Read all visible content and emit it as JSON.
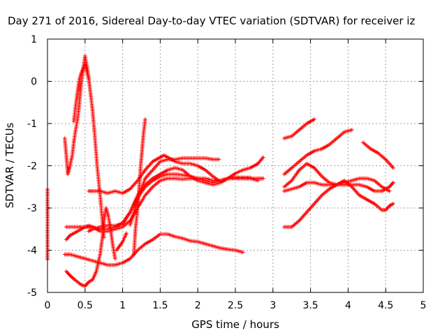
{
  "chart_data": {
    "type": "scatter",
    "title": "Day 271 of 2016, Sidereal Day-to-day VTEC variation (SDTVAR) for receiver iz",
    "xlabel": "GPS time / hours",
    "ylabel": "SDTVAR / TECUs",
    "xlim": [
      0,
      5
    ],
    "ylim": [
      -5,
      1
    ],
    "xticks": [
      0,
      0.5,
      1,
      1.5,
      2,
      2.5,
      3,
      3.5,
      4,
      4.5,
      5
    ],
    "yticks": [
      -5,
      -4,
      -3,
      -2,
      -1,
      0,
      1
    ],
    "xtick_labels": [
      "0",
      "0.5",
      "1",
      "1.5",
      "2",
      "2.5",
      "3",
      "3.5",
      "4",
      "4.5",
      "5"
    ],
    "ytick_labels": [
      "-5",
      "-4",
      "-3",
      "-2",
      "-1",
      "0",
      "1"
    ],
    "grid": true,
    "legend": "none",
    "marker": "+",
    "marker_color": "#ff0000",
    "series": [
      {
        "name": "s1",
        "points": [
          [
            0.0,
            -2.55
          ],
          [
            0.0,
            -3.5
          ],
          [
            0.0,
            -4.22
          ]
        ]
      },
      {
        "name": "s2",
        "points": [
          [
            0.25,
            -4.5
          ],
          [
            0.3,
            -4.6
          ],
          [
            0.35,
            -4.68
          ],
          [
            0.4,
            -4.75
          ],
          [
            0.45,
            -4.82
          ],
          [
            0.5,
            -4.85
          ],
          [
            0.55,
            -4.75
          ],
          [
            0.6,
            -4.7
          ],
          [
            0.65,
            -4.5
          ],
          [
            0.7,
            -4.1
          ],
          [
            0.73,
            -3.7
          ],
          [
            0.76,
            -3.2
          ],
          [
            0.78,
            -3.0
          ],
          [
            0.81,
            -3.2
          ],
          [
            0.84,
            -3.5
          ],
          [
            0.87,
            -3.9
          ],
          [
            0.9,
            -4.2
          ]
        ]
      },
      {
        "name": "s3",
        "points": [
          [
            0.23,
            -4.1
          ],
          [
            0.3,
            -4.1
          ],
          [
            0.4,
            -4.15
          ],
          [
            0.5,
            -4.2
          ],
          [
            0.6,
            -4.25
          ],
          [
            0.7,
            -4.3
          ],
          [
            0.8,
            -4.35
          ],
          [
            0.9,
            -4.35
          ],
          [
            1.0,
            -4.3
          ],
          [
            1.1,
            -4.2
          ],
          [
            1.2,
            -4.0
          ],
          [
            1.3,
            -3.85
          ],
          [
            1.4,
            -3.75
          ],
          [
            1.5,
            -3.62
          ],
          [
            1.6,
            -3.62
          ],
          [
            1.7,
            -3.68
          ],
          [
            1.8,
            -3.72
          ],
          [
            1.9,
            -3.78
          ],
          [
            2.0,
            -3.8
          ],
          [
            2.1,
            -3.85
          ],
          [
            2.2,
            -3.9
          ],
          [
            2.3,
            -3.95
          ],
          [
            2.4,
            -3.98
          ],
          [
            2.5,
            -4.0
          ],
          [
            2.6,
            -4.05
          ]
        ]
      },
      {
        "name": "s4",
        "points": [
          [
            0.25,
            -3.75
          ],
          [
            0.3,
            -3.65
          ],
          [
            0.35,
            -3.6
          ],
          [
            0.4,
            -3.55
          ],
          [
            0.45,
            -3.5
          ],
          [
            0.5,
            -3.45
          ],
          [
            0.55,
            -3.42
          ],
          [
            0.6,
            -3.45
          ],
          [
            0.7,
            -3.55
          ],
          [
            0.8,
            -3.55
          ],
          [
            0.9,
            -3.5
          ],
          [
            1.0,
            -3.45
          ],
          [
            1.1,
            -3.3
          ],
          [
            1.2,
            -3.0
          ],
          [
            1.3,
            -2.7
          ],
          [
            1.4,
            -2.5
          ],
          [
            1.5,
            -2.35
          ],
          [
            1.6,
            -2.3
          ],
          [
            1.7,
            -2.3
          ],
          [
            1.8,
            -2.32
          ],
          [
            1.9,
            -2.3
          ],
          [
            2.0,
            -2.3
          ],
          [
            2.1,
            -2.3
          ],
          [
            2.2,
            -2.35
          ],
          [
            2.3,
            -2.35
          ],
          [
            2.4,
            -2.3
          ],
          [
            2.5,
            -2.28
          ],
          [
            2.6,
            -2.28
          ],
          [
            2.7,
            -2.3
          ],
          [
            2.8,
            -2.3
          ],
          [
            2.87,
            -2.3
          ]
        ]
      },
      {
        "name": "s5",
        "points": [
          [
            0.25,
            -3.45
          ],
          [
            0.4,
            -3.45
          ],
          [
            0.5,
            -3.45
          ],
          [
            0.6,
            -3.45
          ],
          [
            0.7,
            -3.5
          ],
          [
            0.8,
            -3.5
          ],
          [
            0.9,
            -3.45
          ],
          [
            1.0,
            -3.35
          ],
          [
            1.1,
            -3.1
          ],
          [
            1.2,
            -2.7
          ],
          [
            1.3,
            -2.45
          ],
          [
            1.4,
            -2.3
          ],
          [
            1.5,
            -2.2
          ],
          [
            1.6,
            -2.1
          ],
          [
            1.7,
            -2.05
          ],
          [
            1.8,
            -2.1
          ],
          [
            1.9,
            -2.25
          ],
          [
            2.0,
            -2.35
          ],
          [
            2.1,
            -2.4
          ],
          [
            2.2,
            -2.45
          ],
          [
            2.3,
            -2.4
          ],
          [
            2.4,
            -2.3
          ],
          [
            2.5,
            -2.28
          ],
          [
            2.6,
            -2.28
          ],
          [
            2.7,
            -2.28
          ]
        ]
      },
      {
        "name": "s6",
        "points": [
          [
            0.55,
            -3.55
          ],
          [
            0.6,
            -3.5
          ],
          [
            0.7,
            -3.45
          ],
          [
            0.8,
            -3.42
          ],
          [
            0.9,
            -3.42
          ],
          [
            1.0,
            -3.38
          ],
          [
            1.1,
            -3.1
          ],
          [
            1.2,
            -2.75
          ],
          [
            1.3,
            -2.5
          ],
          [
            1.4,
            -2.35
          ],
          [
            1.5,
            -2.25
          ],
          [
            1.6,
            -2.2
          ],
          [
            1.7,
            -2.2
          ],
          [
            1.8,
            -2.22
          ],
          [
            1.9,
            -2.25
          ],
          [
            2.0,
            -2.3
          ],
          [
            2.1,
            -2.35
          ],
          [
            2.2,
            -2.4
          ],
          [
            2.3,
            -2.35
          ],
          [
            2.4,
            -2.3
          ],
          [
            2.5,
            -2.3
          ],
          [
            2.6,
            -2.3
          ],
          [
            2.7,
            -2.3
          ],
          [
            2.8,
            -2.35
          ]
        ]
      },
      {
        "name": "s7",
        "points": [
          [
            0.55,
            -2.6
          ],
          [
            0.6,
            -2.6
          ],
          [
            0.7,
            -2.6
          ],
          [
            0.8,
            -2.65
          ],
          [
            0.9,
            -2.6
          ],
          [
            1.0,
            -2.65
          ],
          [
            1.1,
            -2.55
          ],
          [
            1.2,
            -2.35
          ],
          [
            1.3,
            -2.1
          ],
          [
            1.4,
            -1.9
          ],
          [
            1.5,
            -1.8
          ],
          [
            1.55,
            -1.75
          ],
          [
            1.6,
            -1.8
          ],
          [
            1.7,
            -1.9
          ],
          [
            1.8,
            -1.95
          ],
          [
            1.9,
            -1.95
          ],
          [
            2.0,
            -2.0
          ],
          [
            2.1,
            -2.1
          ],
          [
            2.2,
            -2.25
          ],
          [
            2.3,
            -2.38
          ],
          [
            2.4,
            -2.3
          ],
          [
            2.5,
            -2.18
          ],
          [
            2.6,
            -2.1
          ],
          [
            2.7,
            -2.05
          ],
          [
            2.8,
            -1.95
          ],
          [
            2.87,
            -1.8
          ]
        ]
      },
      {
        "name": "s8",
        "points": [
          [
            1.1,
            -3.4
          ],
          [
            1.2,
            -2.8
          ],
          [
            1.3,
            -2.3
          ],
          [
            1.4,
            -2.1
          ],
          [
            1.5,
            -1.9
          ],
          [
            1.6,
            -1.85
          ],
          [
            1.7,
            -1.85
          ],
          [
            1.8,
            -1.82
          ],
          [
            1.9,
            -1.82
          ],
          [
            2.0,
            -1.82
          ],
          [
            2.1,
            -1.82
          ],
          [
            2.2,
            -1.85
          ],
          [
            2.28,
            -1.85
          ]
        ]
      },
      {
        "name": "s9",
        "points": [
          [
            0.23,
            -1.35
          ],
          [
            0.25,
            -1.75
          ],
          [
            0.27,
            -2.2
          ],
          [
            0.3,
            -2.0
          ],
          [
            0.33,
            -1.75
          ],
          [
            0.35,
            -1.45
          ],
          [
            0.37,
            -1.2
          ],
          [
            0.4,
            -0.9
          ],
          [
            0.42,
            -0.6
          ],
          [
            0.44,
            -0.2
          ],
          [
            0.47,
            0.25
          ],
          [
            0.5,
            0.6
          ],
          [
            0.53,
            0.3
          ],
          [
            0.56,
            -0.1
          ],
          [
            0.6,
            -0.7
          ],
          [
            0.63,
            -1.3
          ],
          [
            0.66,
            -2.0
          ],
          [
            0.7,
            -2.7
          ],
          [
            0.73,
            -3.3
          ],
          [
            0.75,
            -3.7
          ]
        ]
      },
      {
        "name": "s10",
        "points": [
          [
            0.35,
            -0.95
          ],
          [
            0.38,
            -0.5
          ],
          [
            0.4,
            -0.25
          ],
          [
            0.42,
            0.0
          ],
          [
            0.45,
            0.2
          ],
          [
            0.5,
            0.4
          ],
          [
            0.55,
            0.05
          ]
        ]
      },
      {
        "name": "s11",
        "points": [
          [
            1.15,
            -4.1
          ],
          [
            1.17,
            -3.5
          ],
          [
            1.2,
            -3.0
          ],
          [
            1.22,
            -2.5
          ],
          [
            1.24,
            -2.0
          ],
          [
            1.26,
            -1.6
          ],
          [
            1.28,
            -1.2
          ],
          [
            1.3,
            -0.9
          ]
        ]
      },
      {
        "name": "s12",
        "points": [
          [
            0.92,
            -4.0
          ],
          [
            1.0,
            -3.8
          ],
          [
            1.05,
            -3.6
          ]
        ]
      },
      {
        "name": "s13",
        "points": [
          [
            3.15,
            -1.35
          ],
          [
            3.25,
            -1.3
          ],
          [
            3.35,
            -1.15
          ],
          [
            3.45,
            -1.0
          ],
          [
            3.55,
            -0.9
          ]
        ]
      },
      {
        "name": "s14",
        "points": [
          [
            3.15,
            -2.2
          ],
          [
            3.25,
            -2.05
          ],
          [
            3.35,
            -1.9
          ],
          [
            3.45,
            -1.75
          ],
          [
            3.55,
            -1.65
          ],
          [
            3.65,
            -1.6
          ],
          [
            3.75,
            -1.5
          ],
          [
            3.85,
            -1.35
          ],
          [
            3.95,
            -1.2
          ],
          [
            4.05,
            -1.15
          ]
        ]
      },
      {
        "name": "s15",
        "points": [
          [
            3.15,
            -2.5
          ],
          [
            3.25,
            -2.35
          ],
          [
            3.35,
            -2.1
          ],
          [
            3.45,
            -1.95
          ],
          [
            3.55,
            -2.05
          ],
          [
            3.65,
            -2.25
          ],
          [
            3.75,
            -2.4
          ],
          [
            3.85,
            -2.45
          ],
          [
            3.95,
            -2.45
          ],
          [
            4.05,
            -2.45
          ],
          [
            4.15,
            -2.45
          ],
          [
            4.25,
            -2.5
          ],
          [
            4.35,
            -2.6
          ],
          [
            4.45,
            -2.6
          ],
          [
            4.55,
            -2.5
          ],
          [
            4.6,
            -2.4
          ]
        ]
      },
      {
        "name": "s16",
        "points": [
          [
            3.15,
            -2.6
          ],
          [
            3.25,
            -2.55
          ],
          [
            3.35,
            -2.5
          ],
          [
            3.45,
            -2.4
          ],
          [
            3.55,
            -2.4
          ],
          [
            3.65,
            -2.45
          ],
          [
            3.75,
            -2.45
          ],
          [
            3.85,
            -2.45
          ],
          [
            3.95,
            -2.4
          ],
          [
            4.05,
            -2.35
          ],
          [
            4.15,
            -2.3
          ],
          [
            4.25,
            -2.3
          ],
          [
            4.35,
            -2.35
          ],
          [
            4.45,
            -2.5
          ],
          [
            4.55,
            -2.6
          ]
        ]
      },
      {
        "name": "s17",
        "points": [
          [
            3.15,
            -3.45
          ],
          [
            3.25,
            -3.45
          ],
          [
            3.35,
            -3.3
          ],
          [
            3.45,
            -3.1
          ],
          [
            3.55,
            -2.9
          ],
          [
            3.65,
            -2.7
          ],
          [
            3.75,
            -2.55
          ],
          [
            3.85,
            -2.45
          ],
          [
            3.95,
            -2.35
          ],
          [
            4.05,
            -2.5
          ],
          [
            4.15,
            -2.7
          ],
          [
            4.25,
            -2.8
          ],
          [
            4.35,
            -2.9
          ],
          [
            4.45,
            -3.05
          ],
          [
            4.5,
            -3.05
          ],
          [
            4.55,
            -2.95
          ],
          [
            4.6,
            -2.9
          ]
        ]
      },
      {
        "name": "s18",
        "points": [
          [
            4.2,
            -1.45
          ],
          [
            4.3,
            -1.6
          ],
          [
            4.4,
            -1.7
          ],
          [
            4.5,
            -1.85
          ],
          [
            4.6,
            -2.05
          ]
        ]
      }
    ]
  }
}
